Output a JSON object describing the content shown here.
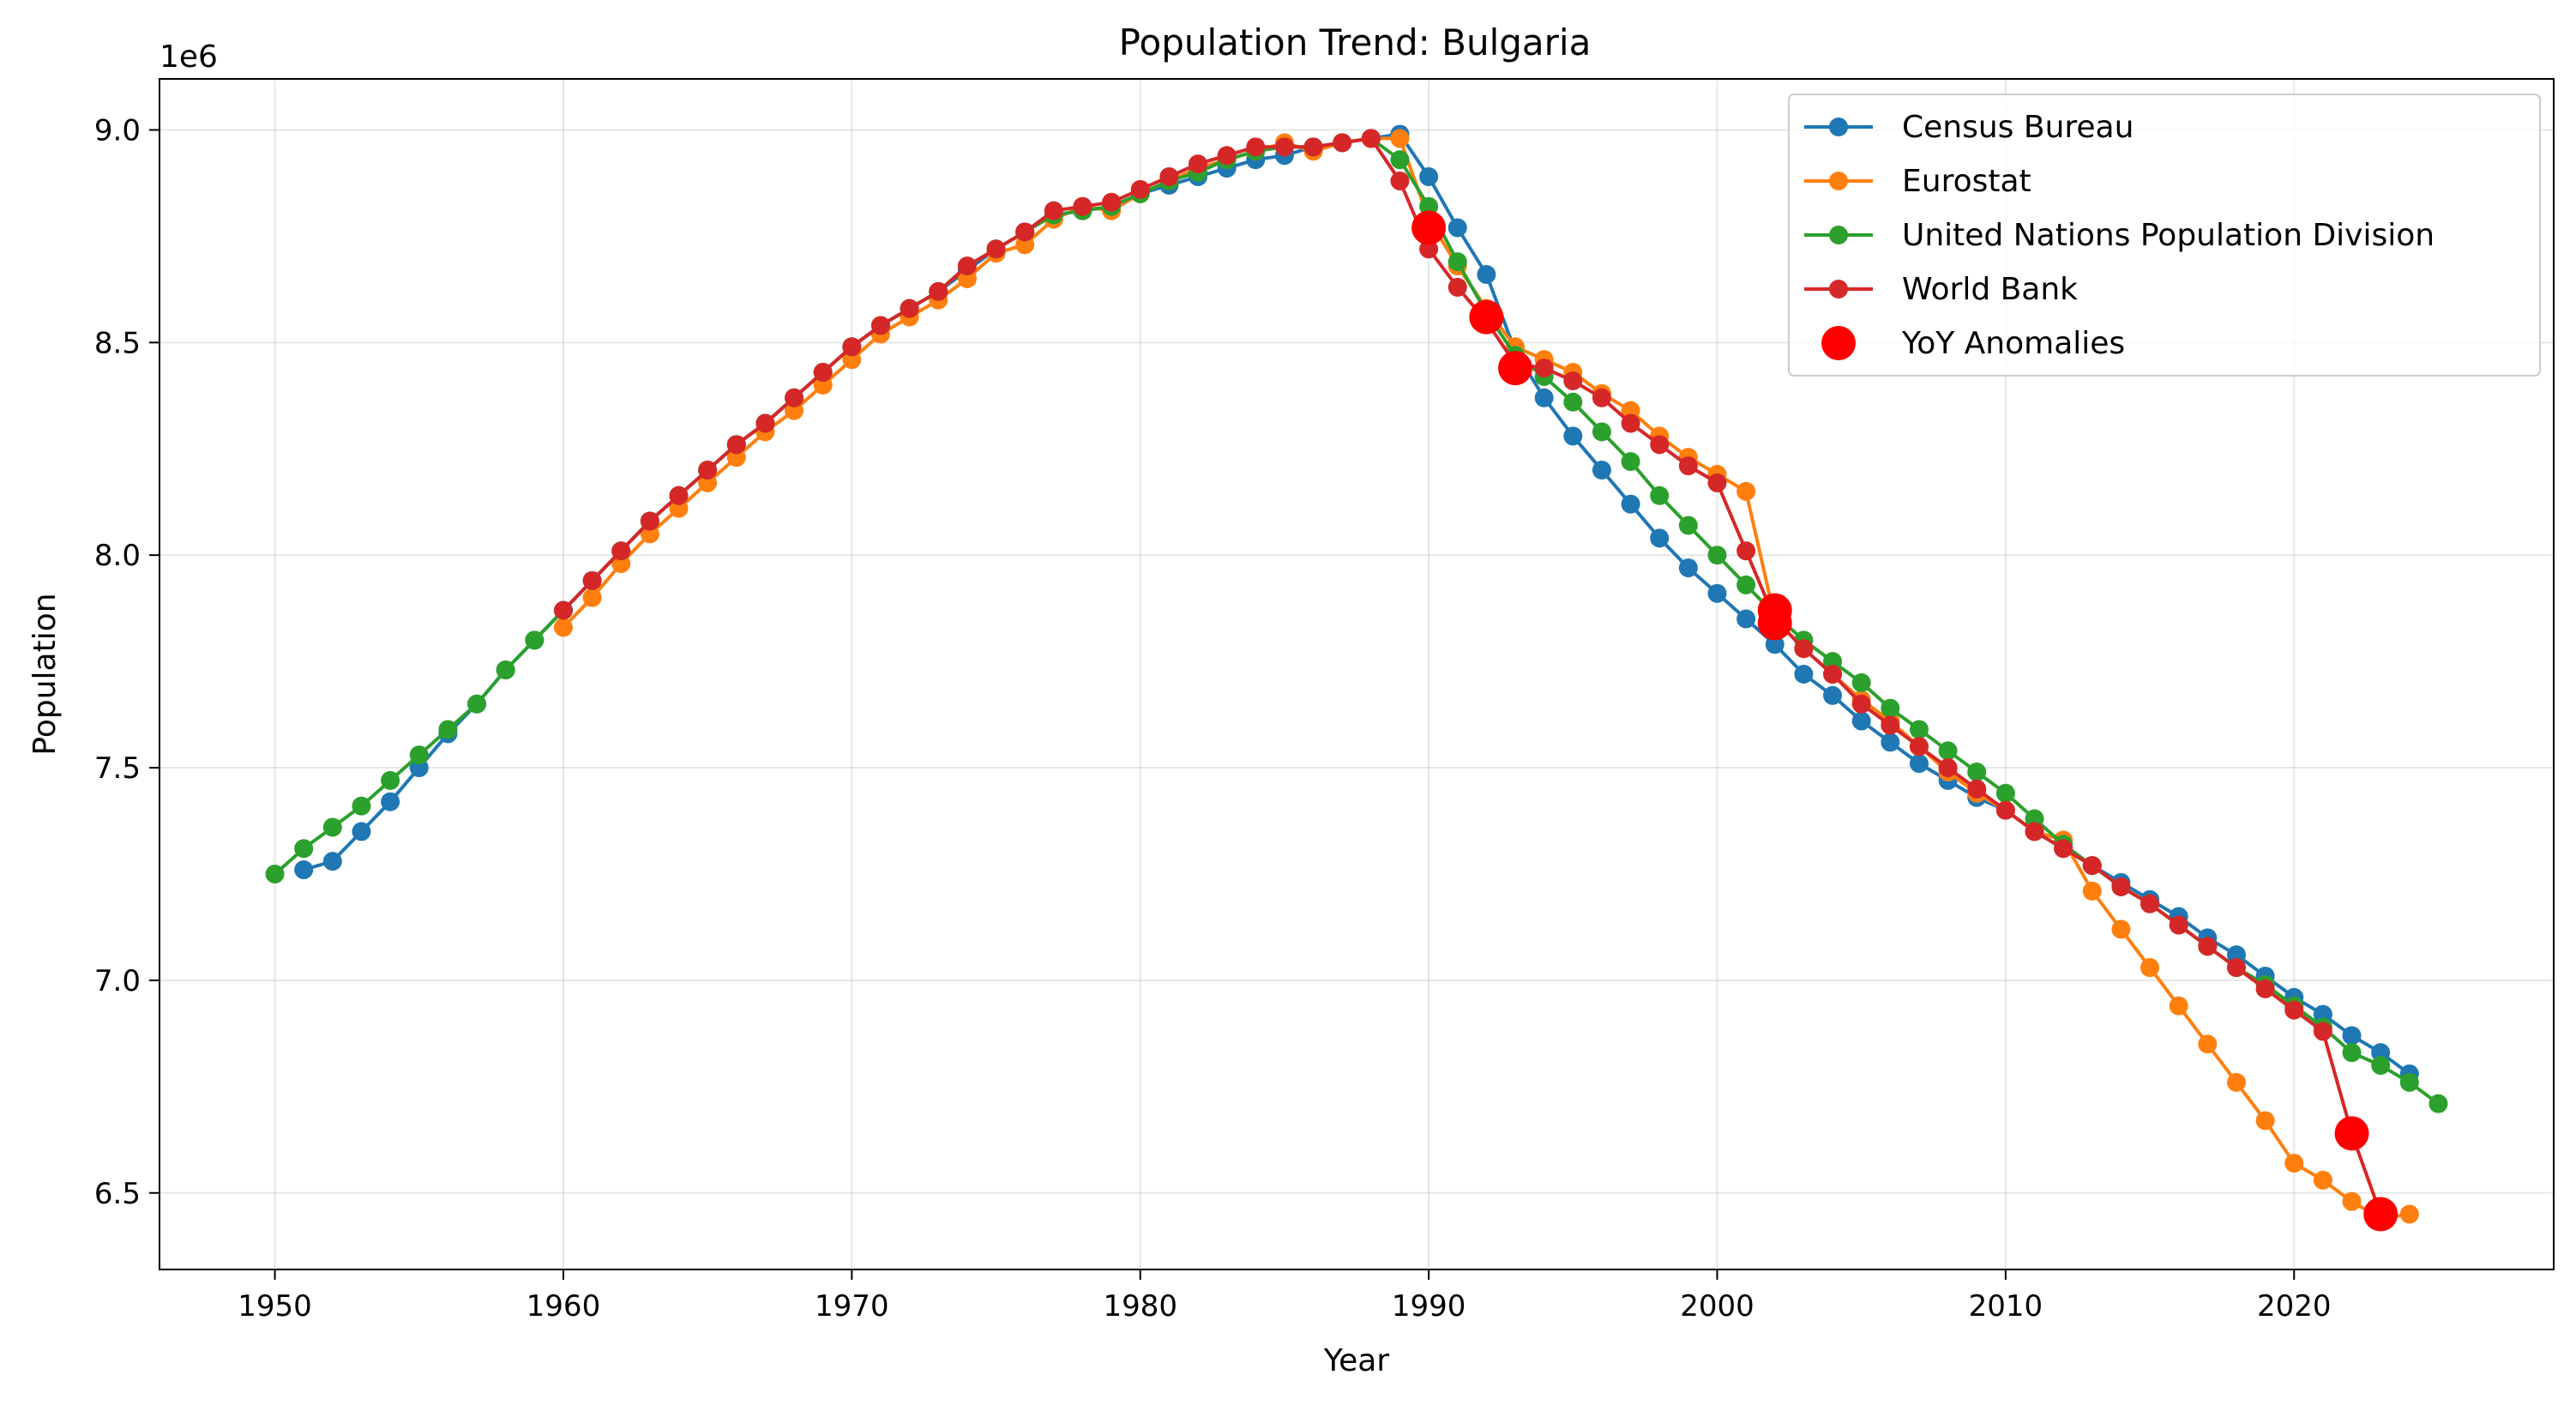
{
  "chart_data": {
    "type": "line",
    "title": "Population Trend: Bulgaria",
    "xlabel": "Year",
    "ylabel": "Population",
    "y_multiplier_label": "1e6",
    "xlim": [
      1946,
      2029
    ],
    "ylim": [
      6.32,
      9.12
    ],
    "x_ticks": [
      1950,
      1960,
      1970,
      1980,
      1990,
      2000,
      2010,
      2020
    ],
    "y_ticks": [
      6.5,
      7.0,
      7.5,
      8.0,
      8.5,
      9.0
    ],
    "x_tick_labels": [
      "1950",
      "1960",
      "1970",
      "1980",
      "1990",
      "2000",
      "2010",
      "2020"
    ],
    "y_tick_labels": [
      "6.5",
      "7.0",
      "7.5",
      "8.0",
      "8.5",
      "9.0"
    ],
    "grid": true,
    "legend_position": "top-right",
    "series": [
      {
        "name": "Census Bureau",
        "color": "#1f77b4",
        "x": [
          1951,
          1952,
          1953,
          1954,
          1955,
          1956,
          1957,
          1958,
          1959,
          1960,
          1961,
          1962,
          1963,
          1964,
          1965,
          1966,
          1967,
          1968,
          1969,
          1970,
          1971,
          1972,
          1973,
          1974,
          1975,
          1976,
          1977,
          1978,
          1979,
          1980,
          1981,
          1982,
          1983,
          1984,
          1985,
          1986,
          1987,
          1988,
          1989,
          1990,
          1991,
          1992,
          1993,
          1994,
          1995,
          1996,
          1997,
          1998,
          1999,
          2000,
          2001,
          2002,
          2003,
          2004,
          2005,
          2006,
          2007,
          2008,
          2009,
          2010,
          2011,
          2012,
          2013,
          2014,
          2015,
          2016,
          2017,
          2018,
          2019,
          2020,
          2021,
          2022,
          2023,
          2024
        ],
        "values": [
          7.26,
          7.28,
          7.35,
          7.42,
          7.5,
          7.58,
          7.65,
          7.73,
          7.8,
          7.87,
          7.94,
          8.01,
          8.08,
          8.14,
          8.2,
          8.26,
          8.31,
          8.37,
          8.43,
          8.49,
          8.54,
          8.58,
          8.62,
          8.67,
          8.72,
          8.76,
          8.8,
          8.81,
          8.82,
          8.85,
          8.87,
          8.89,
          8.91,
          8.93,
          8.94,
          8.96,
          8.97,
          8.98,
          8.99,
          8.89,
          8.77,
          8.66,
          8.48,
          8.37,
          8.28,
          8.2,
          8.12,
          8.04,
          7.97,
          7.91,
          7.85,
          7.79,
          7.72,
          7.67,
          7.61,
          7.56,
          7.51,
          7.47,
          7.43,
          7.4,
          7.35,
          7.31,
          7.27,
          7.23,
          7.19,
          7.15,
          7.1,
          7.06,
          7.01,
          6.96,
          6.92,
          6.87,
          6.83,
          6.78
        ]
      },
      {
        "name": "Eurostat",
        "color": "#ff7f0e",
        "x": [
          1960,
          1961,
          1962,
          1963,
          1964,
          1965,
          1966,
          1967,
          1968,
          1969,
          1970,
          1971,
          1972,
          1973,
          1974,
          1975,
          1976,
          1977,
          1978,
          1979,
          1980,
          1981,
          1982,
          1983,
          1984,
          1985,
          1986,
          1987,
          1988,
          1989,
          1990,
          1991,
          1992,
          1993,
          1994,
          1995,
          1996,
          1997,
          1998,
          1999,
          2000,
          2001,
          2002,
          2003,
          2004,
          2005,
          2006,
          2007,
          2008,
          2009,
          2010,
          2011,
          2012,
          2013,
          2014,
          2015,
          2016,
          2017,
          2018,
          2019,
          2020,
          2021,
          2022,
          2023,
          2024
        ],
        "values": [
          7.83,
          7.9,
          7.98,
          8.05,
          8.11,
          8.17,
          8.23,
          8.29,
          8.34,
          8.4,
          8.46,
          8.52,
          8.56,
          8.6,
          8.65,
          8.71,
          8.73,
          8.79,
          8.82,
          8.81,
          8.85,
          8.88,
          8.91,
          8.93,
          8.95,
          8.97,
          8.95,
          8.97,
          8.98,
          8.98,
          8.79,
          8.68,
          8.58,
          8.49,
          8.46,
          8.43,
          8.38,
          8.34,
          8.28,
          8.23,
          8.19,
          8.15,
          7.85,
          7.78,
          7.72,
          7.66,
          7.61,
          7.55,
          7.49,
          7.44,
          7.4,
          7.35,
          7.33,
          7.21,
          7.12,
          7.03,
          6.94,
          6.85,
          6.76,
          6.67,
          6.57,
          6.53,
          6.48,
          6.44,
          6.45
        ]
      },
      {
        "name": "United Nations Population Division",
        "color": "#2ca02c",
        "x": [
          1950,
          1951,
          1952,
          1953,
          1954,
          1955,
          1956,
          1957,
          1958,
          1959,
          1960,
          1961,
          1962,
          1963,
          1964,
          1965,
          1966,
          1967,
          1968,
          1969,
          1970,
          1971,
          1972,
          1973,
          1974,
          1975,
          1976,
          1977,
          1978,
          1979,
          1980,
          1981,
          1982,
          1983,
          1984,
          1985,
          1986,
          1987,
          1988,
          1989,
          1990,
          1991,
          1992,
          1993,
          1994,
          1995,
          1996,
          1997,
          1998,
          1999,
          2000,
          2001,
          2002,
          2003,
          2004,
          2005,
          2006,
          2007,
          2008,
          2009,
          2010,
          2011,
          2012,
          2013,
          2014,
          2015,
          2016,
          2017,
          2018,
          2019,
          2020,
          2021,
          2022,
          2023,
          2024,
          2025
        ],
        "values": [
          7.25,
          7.31,
          7.36,
          7.41,
          7.47,
          7.53,
          7.59,
          7.65,
          7.73,
          7.8,
          7.87,
          7.94,
          8.01,
          8.08,
          8.14,
          8.2,
          8.26,
          8.31,
          8.37,
          8.43,
          8.49,
          8.54,
          8.58,
          8.62,
          8.68,
          8.72,
          8.76,
          8.8,
          8.81,
          8.82,
          8.85,
          8.88,
          8.9,
          8.93,
          8.95,
          8.96,
          8.96,
          8.97,
          8.98,
          8.93,
          8.82,
          8.69,
          8.57,
          8.47,
          8.42,
          8.36,
          8.29,
          8.22,
          8.14,
          8.07,
          8.0,
          7.93,
          7.86,
          7.8,
          7.75,
          7.7,
          7.64,
          7.59,
          7.54,
          7.49,
          7.44,
          7.38,
          7.32,
          7.27,
          7.22,
          7.18,
          7.13,
          7.08,
          7.03,
          6.99,
          6.94,
          6.89,
          6.83,
          6.8,
          6.76,
          6.71
        ]
      },
      {
        "name": "World Bank",
        "color": "#d62728",
        "x": [
          1960,
          1961,
          1962,
          1963,
          1964,
          1965,
          1966,
          1967,
          1968,
          1969,
          1970,
          1971,
          1972,
          1973,
          1974,
          1975,
          1976,
          1977,
          1978,
          1979,
          1980,
          1981,
          1982,
          1983,
          1984,
          1985,
          1986,
          1987,
          1988,
          1989,
          1990,
          1991,
          1992,
          1993,
          1994,
          1995,
          1996,
          1997,
          1998,
          1999,
          2000,
          2001,
          2002,
          2003,
          2004,
          2005,
          2006,
          2007,
          2008,
          2009,
          2010,
          2011,
          2012,
          2013,
          2014,
          2015,
          2016,
          2017,
          2018,
          2019,
          2020,
          2021,
          2022,
          2023
        ],
        "values": [
          7.87,
          7.94,
          8.01,
          8.08,
          8.14,
          8.2,
          8.26,
          8.31,
          8.37,
          8.43,
          8.49,
          8.54,
          8.58,
          8.62,
          8.68,
          8.72,
          8.76,
          8.81,
          8.82,
          8.83,
          8.86,
          8.89,
          8.92,
          8.94,
          8.96,
          8.96,
          8.96,
          8.97,
          8.98,
          8.88,
          8.72,
          8.63,
          8.55,
          8.45,
          8.44,
          8.41,
          8.37,
          8.31,
          8.26,
          8.21,
          8.17,
          8.01,
          7.85,
          7.78,
          7.72,
          7.65,
          7.6,
          7.55,
          7.5,
          7.45,
          7.4,
          7.35,
          7.31,
          7.27,
          7.22,
          7.18,
          7.13,
          7.08,
          7.03,
          6.98,
          6.93,
          6.88,
          6.64,
          6.45
        ]
      }
    ],
    "anomalies": {
      "name": "YoY Anomalies",
      "color": "#ff0000",
      "x": [
        1990,
        1992,
        1993,
        2002,
        2002,
        2022,
        2023
      ],
      "values": [
        8.77,
        8.56,
        8.44,
        7.87,
        7.84,
        6.64,
        6.45
      ]
    }
  }
}
